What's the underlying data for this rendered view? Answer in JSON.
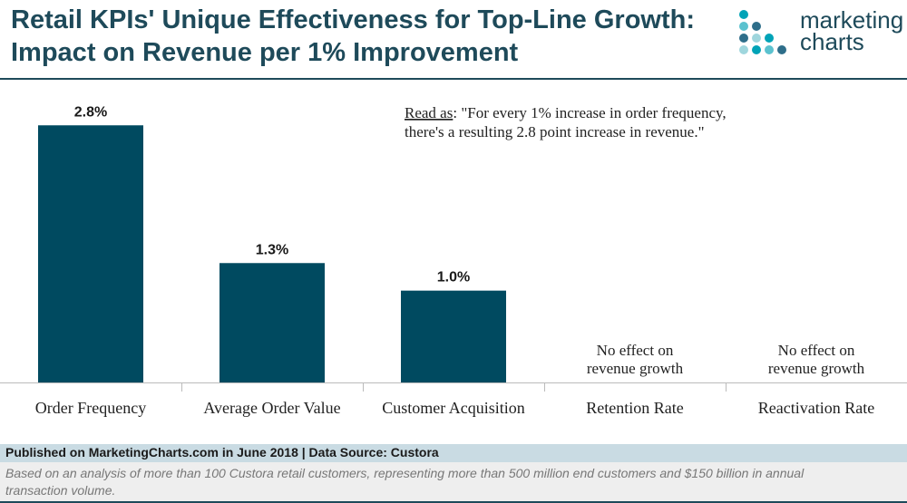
{
  "header": {
    "title_line1": "Retail KPIs' Unique Effectiveness for Top-Line Growth:",
    "title_line2": "Impact on Revenue per 1% Improvement",
    "logo_line1": "marketing",
    "logo_line2": "charts"
  },
  "colors": {
    "bar": "#004a60",
    "title": "#1e4a5a",
    "logo_dots": [
      "#00a3b7",
      "#5bc2cf",
      "#2e6e8a",
      "#9fd6dd"
    ]
  },
  "chart_data": {
    "type": "bar",
    "title": "Retail KPIs' Unique Effectiveness for Top-Line Growth: Impact on Revenue per 1% Improvement",
    "categories": [
      "Order Frequency",
      "Average Order Value",
      "Customer Acquisition",
      "Retention Rate",
      "Reactivation Rate"
    ],
    "values": [
      2.8,
      1.3,
      1.0,
      null,
      null
    ],
    "value_labels": [
      "2.8%",
      "1.3%",
      "1.0%",
      "",
      ""
    ],
    "no_effect_labels": [
      null,
      null,
      null,
      [
        "No effect on",
        "revenue growth"
      ],
      [
        "No effect on",
        "revenue growth"
      ]
    ],
    "xlabel": "",
    "ylabel": "",
    "ylim": [
      0,
      3.0
    ],
    "grid": false,
    "legend": "none",
    "annotation": {
      "lead": "Read as",
      "line1_rest": ": \"For every 1% increase in order frequency,",
      "line2": "there's a resulting 2.8 point increase in revenue.\""
    }
  },
  "footer": {
    "source": "Published on MarketingCharts.com in June 2018 | Data Source: Custora",
    "note_line1": "Based on an analysis of more than 100 Custora retail customers, representing more than 500 million end customers and $150 billion in annual",
    "note_line2": "transaction volume."
  }
}
